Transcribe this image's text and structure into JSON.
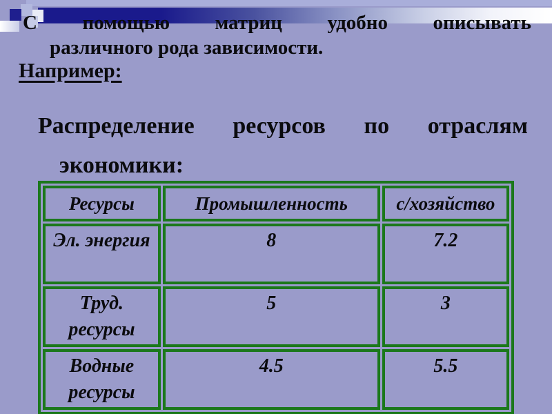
{
  "slide": {
    "colors": {
      "background": "#9a9bca",
      "top_strip": "#a9aeda",
      "bar_navy": "#1a1a8c",
      "table_border_green": "#1b781b",
      "text": "#0b0b0e"
    },
    "title": {
      "line1_words": [
        "С",
        "помощью",
        "матриц",
        "удобно",
        "описывать"
      ],
      "line2": "различного рода зависимости."
    },
    "example_label": "Например:",
    "subtitle": {
      "line1_words": [
        "Распределение",
        "ресурсов",
        "по",
        "отраслям"
      ],
      "line2": "экономики:"
    },
    "table": {
      "headers": [
        "Ресурсы",
        "Промышленность",
        "с/хозяйство"
      ],
      "rows": [
        [
          "Эл. энергия",
          "8",
          "7.2"
        ],
        [
          "Труд. ресурсы",
          "5",
          "3"
        ],
        [
          "Водные ресурсы",
          "4.5",
          "5.5"
        ]
      ]
    }
  }
}
